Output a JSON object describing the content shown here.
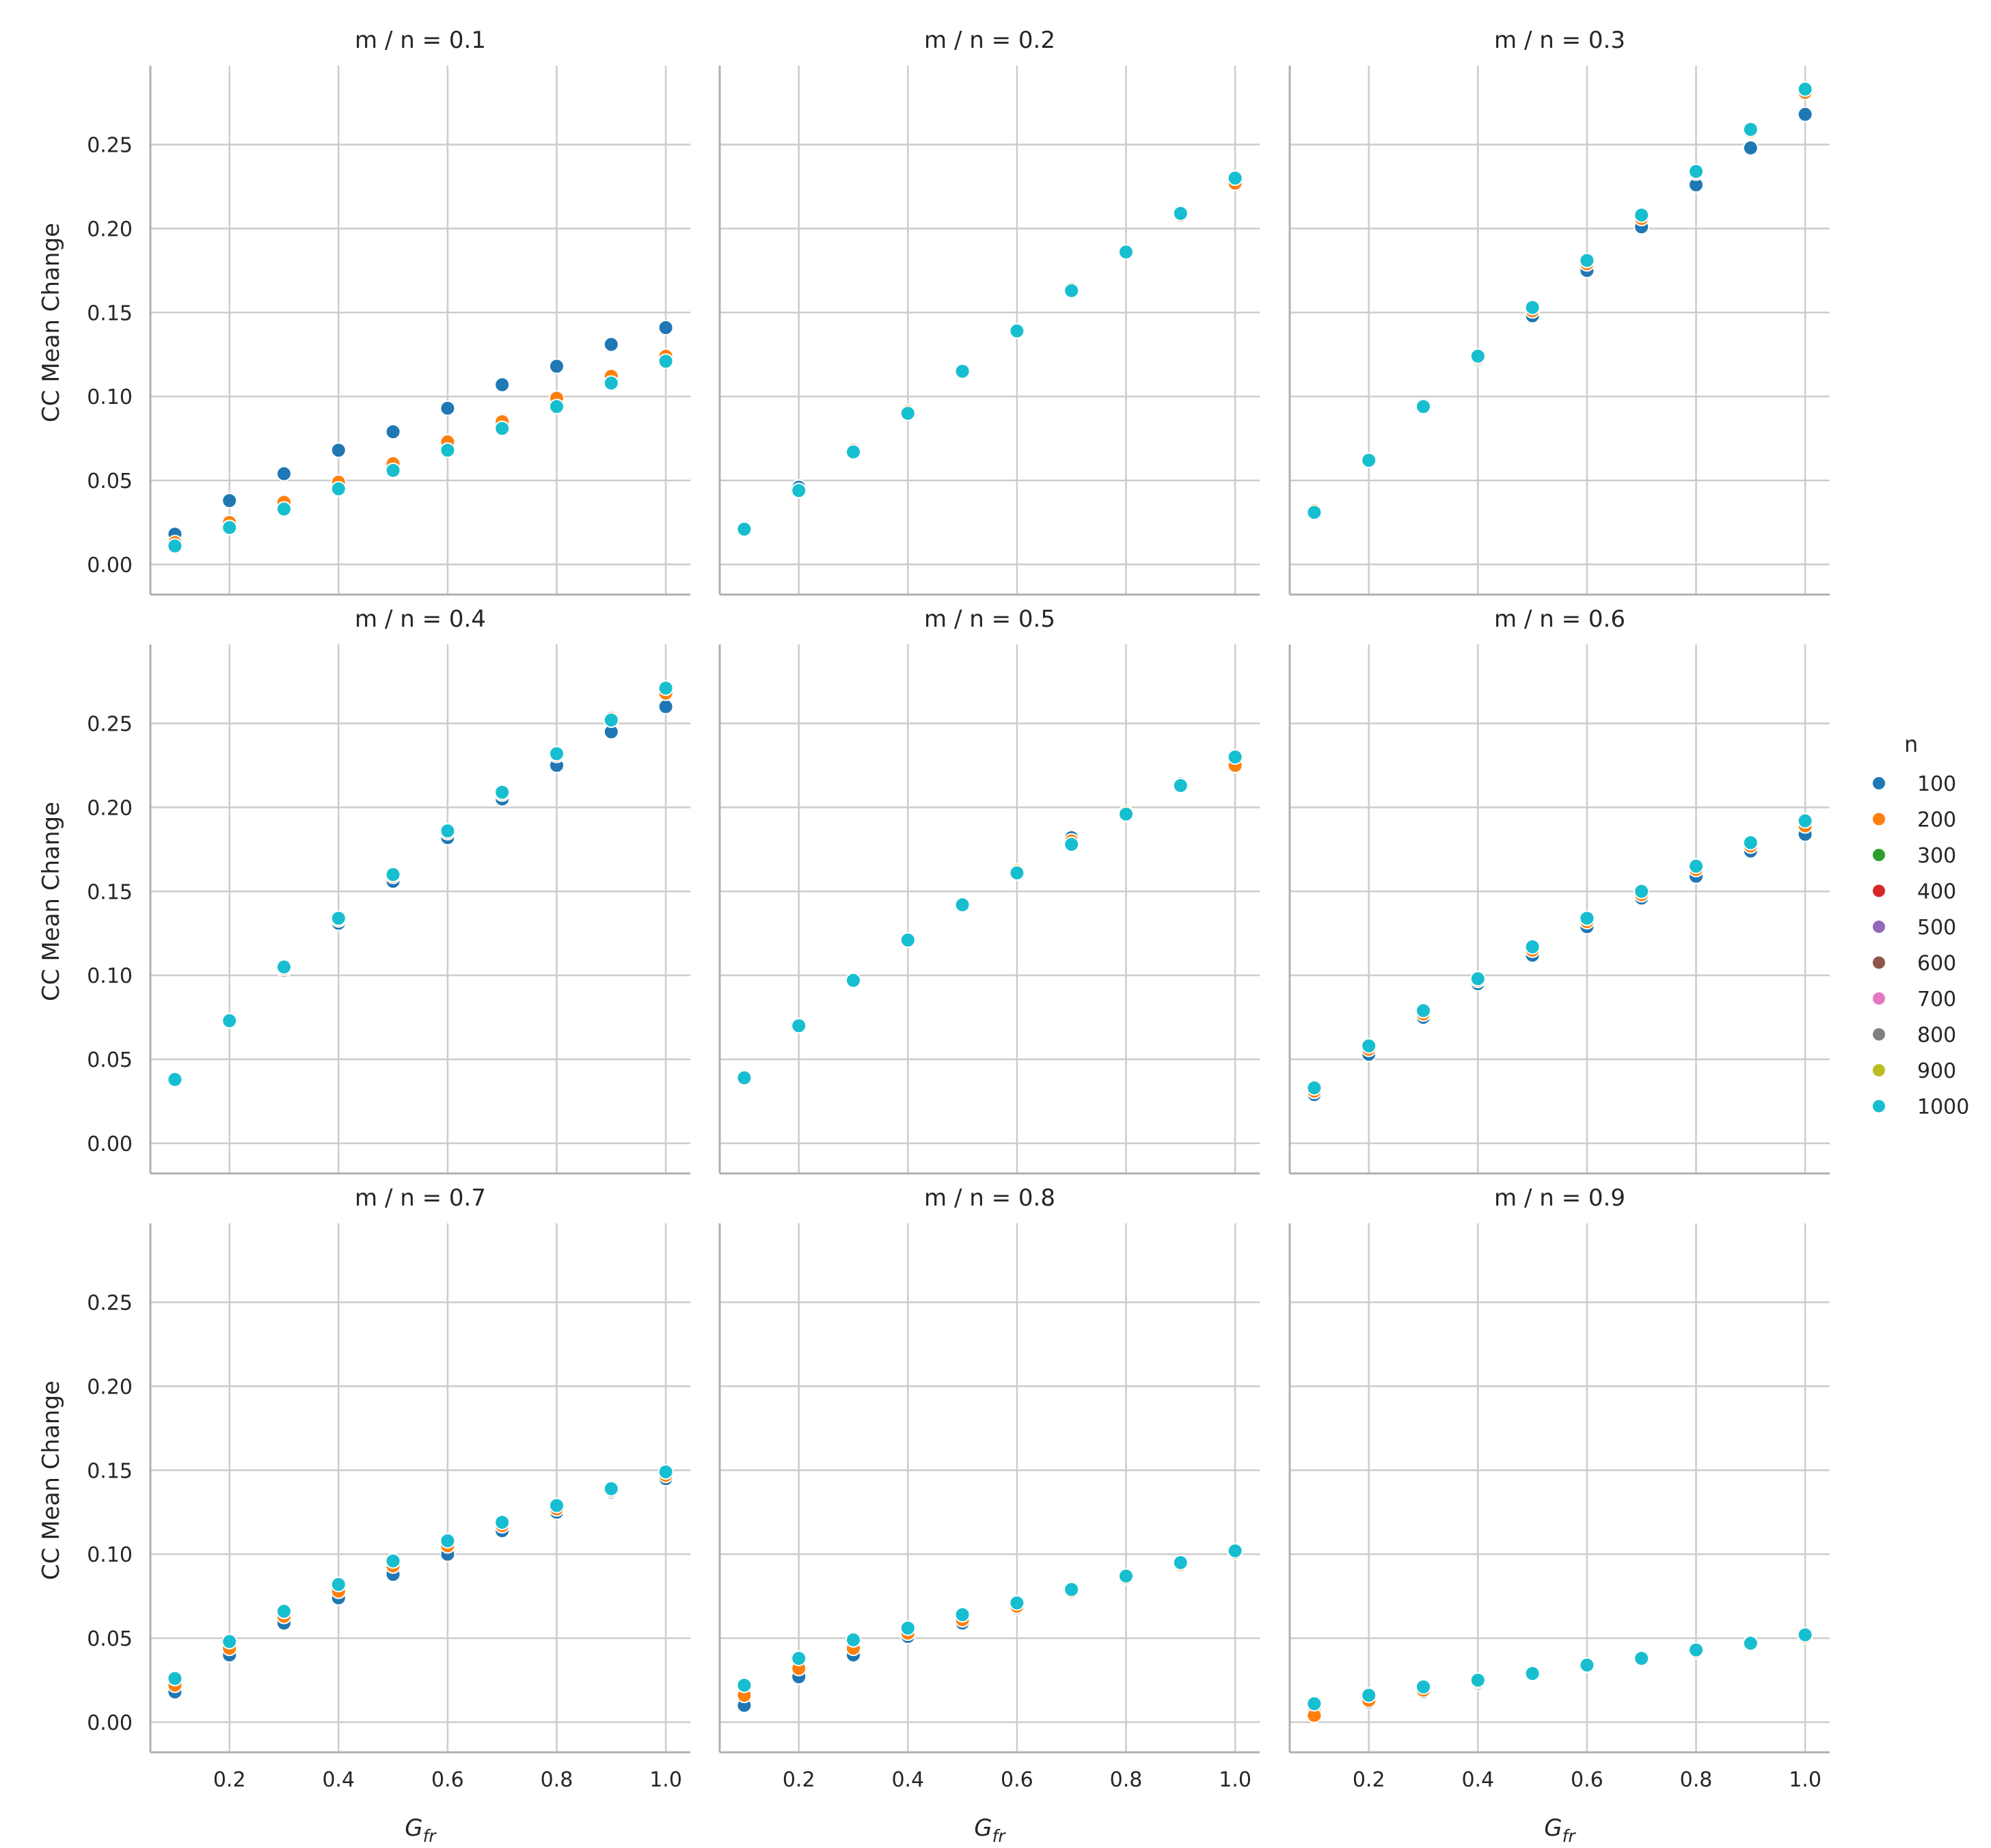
{
  "chart_data": {
    "type": "scatter",
    "facets": [
      "m / n = 0.1",
      "m / n = 0.2",
      "m / n = 0.3",
      "m / n = 0.4",
      "m / n = 0.5",
      "m / n = 0.6",
      "m / n = 0.7",
      "m / n = 0.8",
      "m / n = 0.9"
    ],
    "xlabel": "G",
    "xlabel_subscript": "fr",
    "ylabel": "CC Mean Change",
    "x": [
      0.1,
      0.2,
      0.3,
      0.4,
      0.5,
      0.6,
      0.7,
      0.8,
      0.9,
      1.0
    ],
    "x_ticks": [
      "0.2",
      "0.4",
      "0.6",
      "0.8",
      "1.0"
    ],
    "y_ticks": [
      "0.00",
      "0.05",
      "0.10",
      "0.15",
      "0.20",
      "0.25"
    ],
    "xlim": [
      0.055,
      1.045
    ],
    "ylim": [
      -0.009,
      0.297
    ],
    "grid": true,
    "legend_title": "n",
    "legend_position": "right",
    "series_colors": {
      "100": "#1f77b4",
      "200": "#ff7f0e",
      "300": "#2ca02c",
      "400": "#d62728",
      "500": "#9467bd",
      "600": "#8c564b",
      "700": "#e377c2",
      "800": "#7f7f7f",
      "900": "#bcbd22",
      "1000": "#17becf"
    },
    "series_names": [
      "100",
      "200",
      "300",
      "400",
      "500",
      "600",
      "700",
      "800",
      "900",
      "1000"
    ],
    "panels": [
      {
        "title": "m / n = 0.1",
        "series": [
          {
            "name": "100",
            "values": [
              0.018,
              0.038,
              0.054,
              0.068,
              0.079,
              0.093,
              0.107,
              0.118,
              0.131,
              0.141
            ]
          },
          {
            "name": "200",
            "values": [
              0.013,
              0.025,
              0.037,
              0.049,
              0.06,
              0.073,
              0.085,
              0.099,
              0.112,
              0.124
            ]
          },
          {
            "name": "1000",
            "values": [
              0.011,
              0.022,
              0.033,
              0.045,
              0.056,
              0.068,
              0.081,
              0.094,
              0.108,
              0.121
            ]
          }
        ]
      },
      {
        "title": "m / n = 0.2",
        "series": [
          {
            "name": "100",
            "values": [
              0.021,
              0.046,
              0.067,
              0.09,
              0.115,
              0.139,
              0.163,
              0.186,
              0.209,
              0.228
            ]
          },
          {
            "name": "200",
            "values": [
              0.021,
              0.044,
              0.068,
              0.091,
              0.115,
              0.139,
              0.164,
              0.186,
              0.208,
              0.227
            ]
          },
          {
            "name": "1000",
            "values": [
              0.021,
              0.044,
              0.067,
              0.09,
              0.115,
              0.139,
              0.163,
              0.186,
              0.209,
              0.23
            ]
          }
        ]
      },
      {
        "title": "m / n = 0.3",
        "series": [
          {
            "name": "100",
            "values": [
              0.031,
              0.062,
              0.094,
              0.122,
              0.148,
              0.175,
              0.201,
              0.226,
              0.248,
              0.268
            ]
          },
          {
            "name": "200",
            "values": [
              0.032,
              0.062,
              0.094,
              0.123,
              0.151,
              0.179,
              0.206,
              0.233,
              0.258,
              0.281
            ]
          },
          {
            "name": "1000",
            "values": [
              0.031,
              0.062,
              0.094,
              0.124,
              0.153,
              0.181,
              0.208,
              0.234,
              0.259,
              0.283
            ]
          }
        ]
      },
      {
        "title": "m / n = 0.4",
        "series": [
          {
            "name": "100",
            "values": [
              0.038,
              0.073,
              0.103,
              0.131,
              0.156,
              0.182,
              0.205,
              0.225,
              0.245,
              0.26
            ]
          },
          {
            "name": "200",
            "values": [
              0.038,
              0.073,
              0.104,
              0.133,
              0.159,
              0.185,
              0.208,
              0.231,
              0.253,
              0.268
            ]
          },
          {
            "name": "1000",
            "values": [
              0.038,
              0.073,
              0.105,
              0.134,
              0.16,
              0.186,
              0.209,
              0.232,
              0.252,
              0.271
            ]
          }
        ]
      },
      {
        "title": "m / n = 0.5",
        "series": [
          {
            "name": "100",
            "values": [
              0.039,
              0.07,
              0.097,
              0.121,
              0.142,
              0.162,
              0.182,
              0.196,
              0.214,
              0.226
            ]
          },
          {
            "name": "200",
            "values": [
              0.039,
              0.07,
              0.097,
              0.121,
              0.142,
              0.162,
              0.18,
              0.197,
              0.213,
              0.225
            ]
          },
          {
            "name": "1000",
            "values": [
              0.039,
              0.07,
              0.097,
              0.121,
              0.142,
              0.161,
              0.178,
              0.196,
              0.213,
              0.23
            ]
          }
        ]
      },
      {
        "title": "m / n = 0.6",
        "series": [
          {
            "name": "100",
            "values": [
              0.029,
              0.053,
              0.075,
              0.095,
              0.112,
              0.129,
              0.146,
              0.159,
              0.174,
              0.184
            ]
          },
          {
            "name": "200",
            "values": [
              0.031,
              0.056,
              0.077,
              0.097,
              0.115,
              0.132,
              0.148,
              0.163,
              0.177,
              0.189
            ]
          },
          {
            "name": "1000",
            "values": [
              0.033,
              0.058,
              0.079,
              0.098,
              0.117,
              0.134,
              0.15,
              0.165,
              0.179,
              0.192
            ]
          }
        ]
      },
      {
        "title": "m / n = 0.7",
        "series": [
          {
            "name": "100",
            "values": [
              0.018,
              0.04,
              0.059,
              0.074,
              0.088,
              0.1,
              0.114,
              0.125,
              0.137,
              0.145
            ]
          },
          {
            "name": "200",
            "values": [
              0.022,
              0.044,
              0.063,
              0.078,
              0.093,
              0.105,
              0.117,
              0.127,
              0.138,
              0.147
            ]
          },
          {
            "name": "1000",
            "values": [
              0.026,
              0.048,
              0.066,
              0.082,
              0.096,
              0.108,
              0.119,
              0.129,
              0.139,
              0.149
            ]
          }
        ]
      },
      {
        "title": "m / n = 0.8",
        "series": [
          {
            "name": "100",
            "values": [
              0.01,
              0.027,
              0.04,
              0.051,
              0.059,
              0.068,
              0.078,
              0.086,
              0.094,
              0.101
            ]
          },
          {
            "name": "200",
            "values": [
              0.016,
              0.032,
              0.044,
              0.053,
              0.061,
              0.069,
              0.078,
              0.086,
              0.094,
              0.101
            ]
          },
          {
            "name": "1000",
            "values": [
              0.022,
              0.038,
              0.049,
              0.056,
              0.064,
              0.071,
              0.079,
              0.087,
              0.095,
              0.102
            ]
          }
        ]
      },
      {
        "title": "m / n = 0.9",
        "series": [
          {
            "name": "100",
            "values": [
              0.006,
              0.012,
              0.018,
              0.023,
              0.029,
              0.034,
              0.038,
              0.043,
              0.047,
              0.052
            ]
          },
          {
            "name": "200",
            "values": [
              0.004,
              0.013,
              0.019,
              0.024,
              0.029,
              0.034,
              0.038,
              0.042,
              0.047,
              0.051
            ]
          },
          {
            "name": "1000",
            "values": [
              0.011,
              0.016,
              0.021,
              0.025,
              0.029,
              0.034,
              0.038,
              0.043,
              0.047,
              0.052
            ]
          }
        ]
      }
    ]
  }
}
